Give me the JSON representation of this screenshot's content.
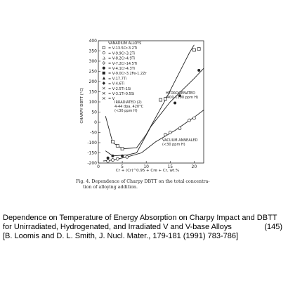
{
  "figure": {
    "caption_line1": "Fig. 4. Dependence of Charpy DBTT on the total concentra-",
    "caption_line2": "tion of alloying addition."
  },
  "footer": {
    "title_line1": "Dependence on Temperature of Energy Absorption on Charpy Impact and DBTT",
    "title_line2": "for Unirradiated, Hydrogenated, and Irradiated V and V-base Alloys",
    "page_number": "(145)",
    "reference": "[B. Loomis and D. L. Smith, J. Nucl. Mater., 179-181 (1991) 783-786]"
  },
  "chart_data": {
    "type": "scatter",
    "title": "",
    "ylabel": "CHARPY DBTT (°C)",
    "xlabel": "Cr + (Cr)^0.95 + Cre + Cr, wt.%",
    "xlim": [
      0,
      22
    ],
    "ylim": [
      -200,
      400
    ],
    "yticks": [
      -200,
      -150,
      -100,
      -50,
      0,
      50,
      100,
      150,
      200,
      250,
      300,
      350,
      400
    ],
    "xticks": [
      0,
      5,
      10,
      15,
      20
    ],
    "legend_title": "VANADIUM ALLOYS",
    "legend": [
      {
        "label": "V-13.5Cr-3.2Ti",
        "marker": "open-square"
      },
      {
        "label": "V-9.9Cr-3.2Ti",
        "marker": "open-circle"
      },
      {
        "label": "V-8.2Cr-4.9Ti",
        "marker": "open-triangle"
      },
      {
        "label": "V-7.2Cr-14.5Ti",
        "marker": "open-diamond"
      },
      {
        "label": "V-4.1Cr-4.3Ti",
        "marker": "filled-circle"
      },
      {
        "label": "V-9.0Cr-3.2Fe-1.2Zr",
        "marker": "filled-square"
      },
      {
        "label": "V-17.7Ti",
        "marker": "filled-triangle"
      },
      {
        "label": "V-4.6Ti",
        "marker": "filled-diamond"
      },
      {
        "label": "V-2.5Ti-1Si",
        "marker": "cross"
      },
      {
        "label": "V-3.1Ti-0.5Si",
        "marker": "open-star"
      },
      {
        "label": "V",
        "marker": "x"
      }
    ],
    "annotations": [
      {
        "text": "IRRADIATED (2)",
        "line2": "4-44 dpa, 420°C",
        "line3": "(<30 ppm H)"
      },
      {
        "text": "HYDROGENATED",
        "line2": "(400-1200 ppm H)"
      },
      {
        "text": "VACUUM ANNEALED",
        "line2": "(<30 ppm H)"
      }
    ],
    "series": [
      {
        "name": "IRRADIATED",
        "line": [
          [
            1.5,
            30
          ],
          [
            3,
            -100
          ],
          [
            5,
            -130
          ],
          [
            8,
            -125
          ],
          [
            10,
            -60
          ],
          [
            14,
            110
          ],
          [
            19,
            340
          ],
          [
            20,
            380
          ]
        ],
        "points": [
          [
            3,
            -95
          ],
          [
            4,
            -115
          ],
          [
            5,
            -130
          ],
          [
            13,
            110
          ],
          [
            14,
            115
          ],
          [
            20,
            355
          ],
          [
            21,
            360
          ]
        ]
      },
      {
        "name": "HYDROGENATED",
        "line": [
          [
            1.5,
            -140
          ],
          [
            3,
            -165
          ],
          [
            6,
            -160
          ],
          [
            8,
            -150
          ],
          [
            11,
            -20
          ],
          [
            15,
            100
          ],
          [
            20,
            215
          ],
          [
            22,
            265
          ]
        ],
        "points": [
          [
            2,
            -175
          ],
          [
            3,
            -165
          ],
          [
            5,
            -165
          ],
          [
            16,
            95
          ],
          [
            17,
            130
          ],
          [
            21,
            255
          ]
        ]
      },
      {
        "name": "VACUUM ANNEALED",
        "line": [
          [
            1,
            -190
          ],
          [
            3,
            -185
          ],
          [
            6,
            -170
          ],
          [
            9,
            -150
          ],
          [
            12,
            -95
          ],
          [
            16,
            -40
          ],
          [
            20,
            25
          ],
          [
            22,
            60
          ]
        ],
        "points": [
          [
            2,
            -190
          ],
          [
            3,
            -185
          ],
          [
            4,
            -180
          ],
          [
            6,
            -170
          ],
          [
            14,
            -60
          ],
          [
            15,
            -50
          ],
          [
            17,
            -30
          ],
          [
            19,
            10
          ],
          [
            20,
            20
          ]
        ]
      }
    ]
  }
}
